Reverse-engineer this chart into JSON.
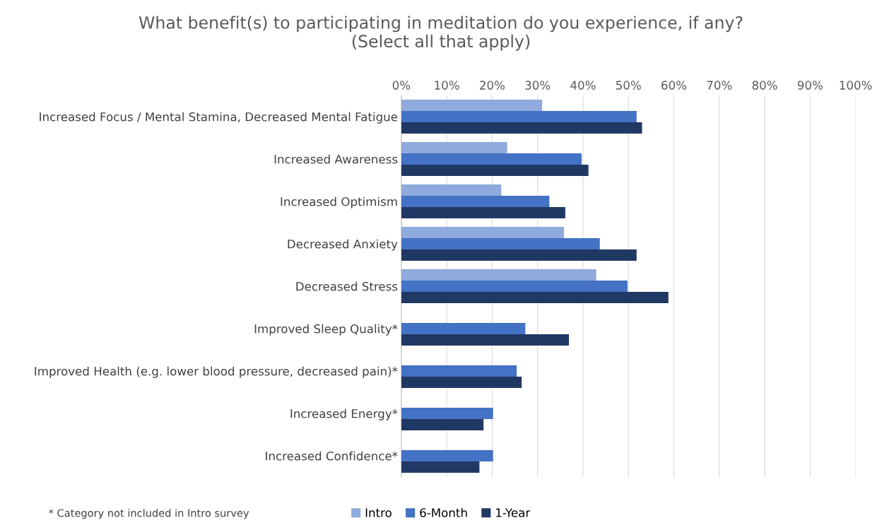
{
  "chart_data": {
    "type": "bar",
    "orientation": "horizontal",
    "title": "What benefit(s) to participating in meditation do you experience, if any?\n(Select all that apply)",
    "categories": [
      "Increased Focus / Mental Stamina, Decreased Mental Fatigue",
      "Increased Awareness",
      "Increased Optimism",
      "Decreased Anxiety",
      "Decreased Stress",
      "Improved Sleep Quality*",
      "Improved Health (e.g. lower blood pressure, decreased pain)*",
      "Increased Energy*",
      "Increased Confidence*"
    ],
    "series": [
      {
        "name": "Intro",
        "color": "#8faadc",
        "values": [
          31,
          23.3,
          22,
          35.8,
          42.9,
          null,
          null,
          null,
          null
        ]
      },
      {
        "name": "6-Month",
        "color": "#4472c4",
        "values": [
          51.8,
          39.7,
          32.6,
          43.7,
          49.8,
          27.3,
          25.4,
          20.2,
          20.2
        ]
      },
      {
        "name": "1-Year",
        "color": "#203864",
        "values": [
          53,
          41.2,
          36.1,
          51.8,
          58.8,
          36.9,
          26.5,
          18.1,
          17.2
        ]
      }
    ],
    "xlim": [
      0,
      100
    ],
    "xticks": [
      {
        "value": 0,
        "label": "0%"
      },
      {
        "value": 10,
        "label": "10%"
      },
      {
        "value": 20,
        "label": "20%"
      },
      {
        "value": 30,
        "label": "30%"
      },
      {
        "value": 40,
        "label": "40%"
      },
      {
        "value": 50,
        "label": "50%"
      },
      {
        "value": 60,
        "label": "60%"
      },
      {
        "value": 70,
        "label": "70%"
      },
      {
        "value": 80,
        "label": "80%"
      },
      {
        "value": 90,
        "label": "90%"
      },
      {
        "value": 100,
        "label": "100%"
      }
    ],
    "grid": "x",
    "legend": "bottom",
    "annotations": [
      "* Category not included in Intro survey"
    ]
  }
}
